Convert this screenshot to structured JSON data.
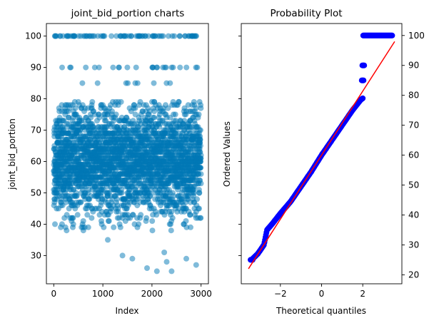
{
  "colors": {
    "scatter": "#0077b6",
    "probability_points": "#0000ff",
    "fit_line": "#ff0000",
    "axes": "#000000",
    "background": "#ffffff"
  },
  "chart_data": [
    {
      "type": "scatter",
      "title": "joint_bid_portion charts",
      "xlabel": "Index",
      "ylabel": "joint_bid_portion",
      "xlim": [
        -150,
        3150
      ],
      "ylim": [
        21,
        104
      ],
      "xticks": [
        0,
        1000,
        2000,
        3000
      ],
      "yticks": [
        30,
        40,
        50,
        60,
        70,
        80,
        90,
        100
      ],
      "alpha": 0.5,
      "grid": false,
      "n_points": 3000,
      "value_levels": [
        {
          "value": 100,
          "description": "repeated top band"
        },
        {
          "value": 90
        },
        {
          "value": 85
        }
      ],
      "core_range": [
        38,
        79
      ],
      "outliers": [
        {
          "x": 1400,
          "y": 30
        },
        {
          "x": 1600,
          "y": 29
        },
        {
          "x": 1900,
          "y": 26
        },
        {
          "x": 2100,
          "y": 25
        },
        {
          "x": 2250,
          "y": 31
        },
        {
          "x": 2400,
          "y": 25
        },
        {
          "x": 2700,
          "y": 29
        },
        {
          "x": 2900,
          "y": 27
        },
        {
          "x": 2300,
          "y": 28
        },
        {
          "x": 1100,
          "y": 35
        }
      ]
    },
    {
      "type": "scatter",
      "title": "Probability Plot",
      "xlabel": "Theoretical quantiles",
      "ylabel": "Ordered Values",
      "xlim": [
        -3.9,
        3.9
      ],
      "ylim": [
        17,
        104
      ],
      "xticks": [
        -2,
        0,
        2
      ],
      "yticks": [
        20,
        30,
        40,
        50,
        60,
        70,
        80,
        90,
        100
      ],
      "y_axis_side": "right",
      "grid": false,
      "fit_line": {
        "slope": 10.7,
        "intercept": 60.0,
        "x_range": [
          -3.55,
          3.55
        ]
      },
      "quantile_curve": [
        {
          "x": -3.4,
          "y": 25
        },
        {
          "x": -3.1,
          "y": 27
        },
        {
          "x": -2.8,
          "y": 30
        },
        {
          "x": -2.65,
          "y": 35
        },
        {
          "x": -2.4,
          "y": 37
        },
        {
          "x": -2.0,
          "y": 40.5
        },
        {
          "x": -1.5,
          "y": 44.5
        },
        {
          "x": -1.0,
          "y": 49.5
        },
        {
          "x": -0.5,
          "y": 54.5
        },
        {
          "x": 0.0,
          "y": 60
        },
        {
          "x": 0.5,
          "y": 65
        },
        {
          "x": 1.0,
          "y": 70
        },
        {
          "x": 1.5,
          "y": 75
        },
        {
          "x": 1.9,
          "y": 78.5
        },
        {
          "x": 2.0,
          "y": 79
        }
      ],
      "plateaus": [
        {
          "y": 85,
          "x_range": [
            1.95,
            2.05
          ]
        },
        {
          "y": 90,
          "x_range": [
            1.98,
            2.08
          ]
        },
        {
          "y": 100,
          "x_range": [
            2.02,
            3.45
          ]
        }
      ]
    }
  ]
}
